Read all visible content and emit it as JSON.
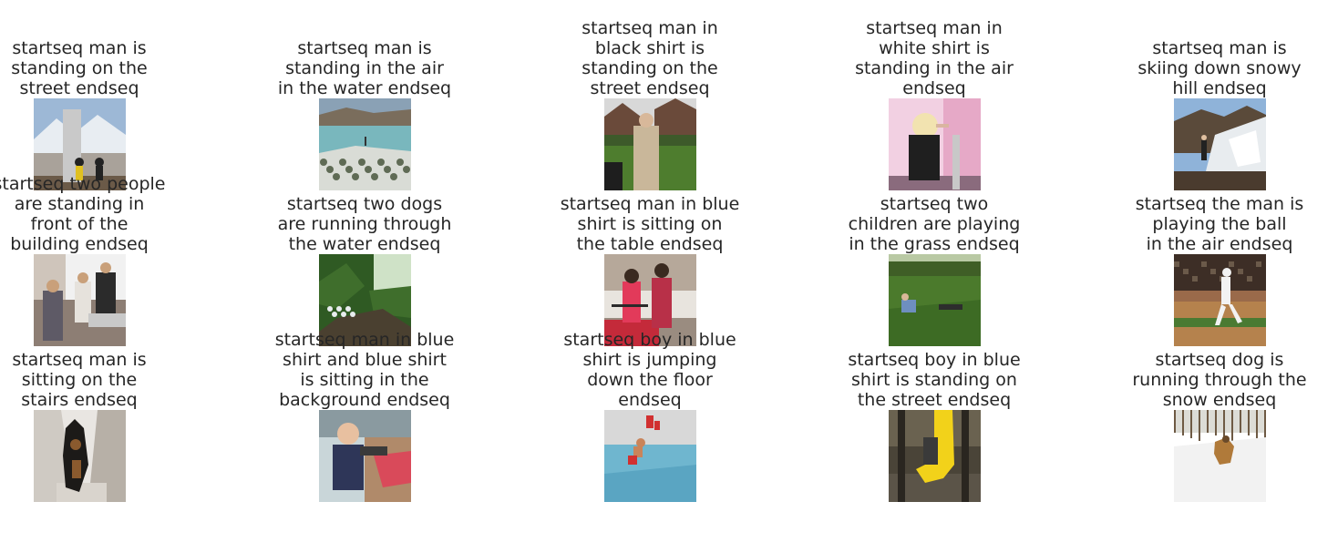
{
  "figure": {
    "rows": 3,
    "cols": 5,
    "items": [
      {
        "caption": "startseq man is\nstanding on the\nstreet endseq",
        "scene": "mountain-monument",
        "palette": {
          "sky": "#9db8d6",
          "top": "#e8edf2",
          "mid": "#a9a29a",
          "ground": "#6b5a48",
          "accent": "#c9c9c9",
          "figure": "#222222"
        }
      },
      {
        "caption": "startseq man is\nstanding in the air\nin the water endseq",
        "scene": "lake-hill",
        "palette": {
          "sky": "#8aa1b5",
          "top": "#7a6d5c",
          "mid": "#79b7bd",
          "ground": "#d9dcd6",
          "accent": "#5f6b55",
          "figure": "#333333"
        }
      },
      {
        "caption": "startseq man in\nblack shirt is\nstanding on the\nstreet endseq",
        "scene": "street-houses",
        "palette": {
          "sky": "#d8d8d8",
          "top": "#6a4a3a",
          "mid": "#3d5a2a",
          "ground": "#4e7d2e",
          "accent": "#c9b79a",
          "figure": "#1e1e1e"
        }
      },
      {
        "caption": "startseq man in\nwhite shirt is\nstanding in the air\nendseq",
        "scene": "woman-pink",
        "palette": {
          "sky": "#e6a9c7",
          "top": "#f2d0e2",
          "mid": "#d29ab5",
          "ground": "#8a6b7d",
          "accent": "#f2e3b0",
          "figure": "#1f1f1f"
        }
      },
      {
        "caption": "startseq man is\nskiing down snowy\nhill endseq",
        "scene": "snowy-slope",
        "palette": {
          "sky": "#8fb3d9",
          "top": "#5a4a3a",
          "mid": "#e8ecef",
          "ground": "#4a3b2e",
          "accent": "#ffffff",
          "figure": "#222222"
        }
      },
      {
        "caption": "startseq two people\nare standing in\nfront of the\nbuilding endseq",
        "scene": "indoor-group",
        "palette": {
          "sky": "#f1f1f1",
          "top": "#cfc5bb",
          "mid": "#8d7e74",
          "ground": "#5e5a66",
          "accent": "#c9a07a",
          "figure": "#2b2b2b"
        }
      },
      {
        "caption": "startseq two dogs\nare running through\nthe water endseq",
        "scene": "forest-stream",
        "palette": {
          "sky": "#cfe2c7",
          "top": "#2f5a23",
          "mid": "#3f6e2c",
          "ground": "#4a4030",
          "accent": "#e8ecef",
          "figure": "#1e2b18"
        }
      },
      {
        "caption": "startseq man in blue\nshirt is sitting on\nthe table endseq",
        "scene": "couple-street",
        "palette": {
          "sky": "#e8e4de",
          "top": "#b6a89a",
          "mid": "#9a8c80",
          "ground": "#c42a3a",
          "accent": "#e23a5a",
          "figure": "#2a2a2a"
        }
      },
      {
        "caption": "startseq two\nchildren are playing\nin the grass endseq",
        "scene": "park-grass",
        "palette": {
          "sky": "#b9c9a4",
          "top": "#3f5e26",
          "mid": "#4b7a2c",
          "ground": "#3d6b24",
          "accent": "#6e8fbf",
          "figure": "#2d2d2d"
        }
      },
      {
        "caption": "startseq the man is\nplaying the ball\nin the air endseq",
        "scene": "baseball",
        "palette": {
          "sky": "#3d2e26",
          "top": "#6b5a4a",
          "mid": "#9a6a4a",
          "ground": "#b5824d",
          "accent": "#4a7a32",
          "figure": "#f2f2f2"
        }
      },
      {
        "caption": "startseq man is\nsitting on the\nstairs endseq",
        "scene": "dog-stairs",
        "palette": {
          "sky": "#e9e6e2",
          "top": "#cfcac3",
          "mid": "#b7b0a7",
          "ground": "#d9d4cd",
          "accent": "#8a5a2e",
          "figure": "#1c1a18"
        }
      },
      {
        "caption": "startseq man in blue\nshirt and blue shirt\nis sitting in the\nbackground endseq",
        "scene": "boy-toy",
        "palette": {
          "sky": "#c9d6d9",
          "top": "#8a9aa0",
          "mid": "#b08a6a",
          "ground": "#2e3658",
          "accent": "#d94a5a",
          "figure": "#e8c0a0"
        }
      },
      {
        "caption": "startseq boy in blue\nshirt is jumping\ndown the floor\nendseq",
        "scene": "pool-jump",
        "palette": {
          "sky": "#eaeaea",
          "top": "#d8d8d8",
          "mid": "#6fb6cf",
          "ground": "#5aa5c2",
          "accent": "#d13030",
          "figure": "#c9845a"
        }
      },
      {
        "caption": "startseq boy in blue\nshirt is standing on\nthe street endseq",
        "scene": "playground-slide",
        "palette": {
          "sky": "#4a4438",
          "top": "#6a6250",
          "mid": "#8a7d66",
          "ground": "#5b5448",
          "accent": "#f2d21a",
          "figure": "#3a3a3a"
        }
      },
      {
        "caption": "startseq dog is\nrunning through the\nsnow endseq",
        "scene": "snow-dog",
        "palette": {
          "sky": "#dcdcd6",
          "top": "#6e5a44",
          "mid": "#f2f2f2",
          "ground": "#ffffff",
          "accent": "#b07a3a",
          "figure": "#6a4a2a"
        }
      }
    ]
  }
}
